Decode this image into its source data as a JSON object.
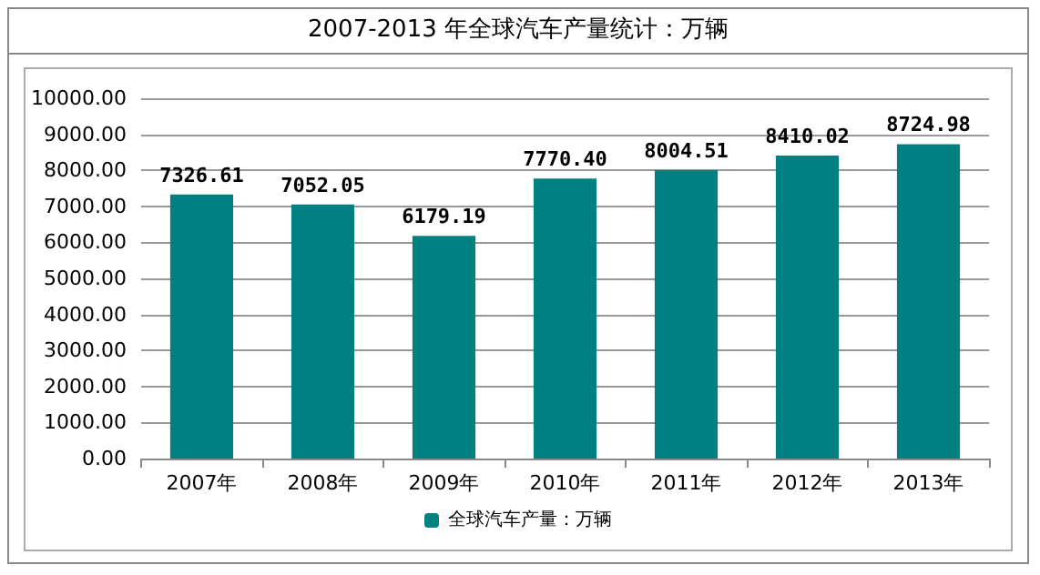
{
  "chart_data": {
    "type": "bar",
    "title": "2007-2013 年全球汽车产量统计：万辆",
    "categories": [
      "2007年",
      "2008年",
      "2009年",
      "2010年",
      "2011年",
      "2012年",
      "2013年"
    ],
    "series": [
      {
        "name": "全球汽车产量：万辆",
        "color": "#008080",
        "values": [
          7326.61,
          7052.05,
          6179.19,
          7770.4,
          8004.51,
          8410.02,
          8724.98
        ],
        "value_labels": [
          "7326.61",
          "7052.05",
          "6179.19",
          "7770.40",
          "8004.51",
          "8410.02",
          "8724.98"
        ]
      }
    ],
    "ylim": [
      0,
      10000
    ],
    "yticks": [
      {
        "value": 0,
        "label": "0.00"
      },
      {
        "value": 1000,
        "label": "1000.00"
      },
      {
        "value": 2000,
        "label": "2000.00"
      },
      {
        "value": 3000,
        "label": "3000.00"
      },
      {
        "value": 4000,
        "label": "4000.00"
      },
      {
        "value": 5000,
        "label": "5000.00"
      },
      {
        "value": 6000,
        "label": "6000.00"
      },
      {
        "value": 7000,
        "label": "7000.00"
      },
      {
        "value": 8000,
        "label": "8000.00"
      },
      {
        "value": 9000,
        "label": "9000.00"
      },
      {
        "value": 10000,
        "label": "10000.00"
      }
    ],
    "grid": "y",
    "legend": "bottom"
  }
}
